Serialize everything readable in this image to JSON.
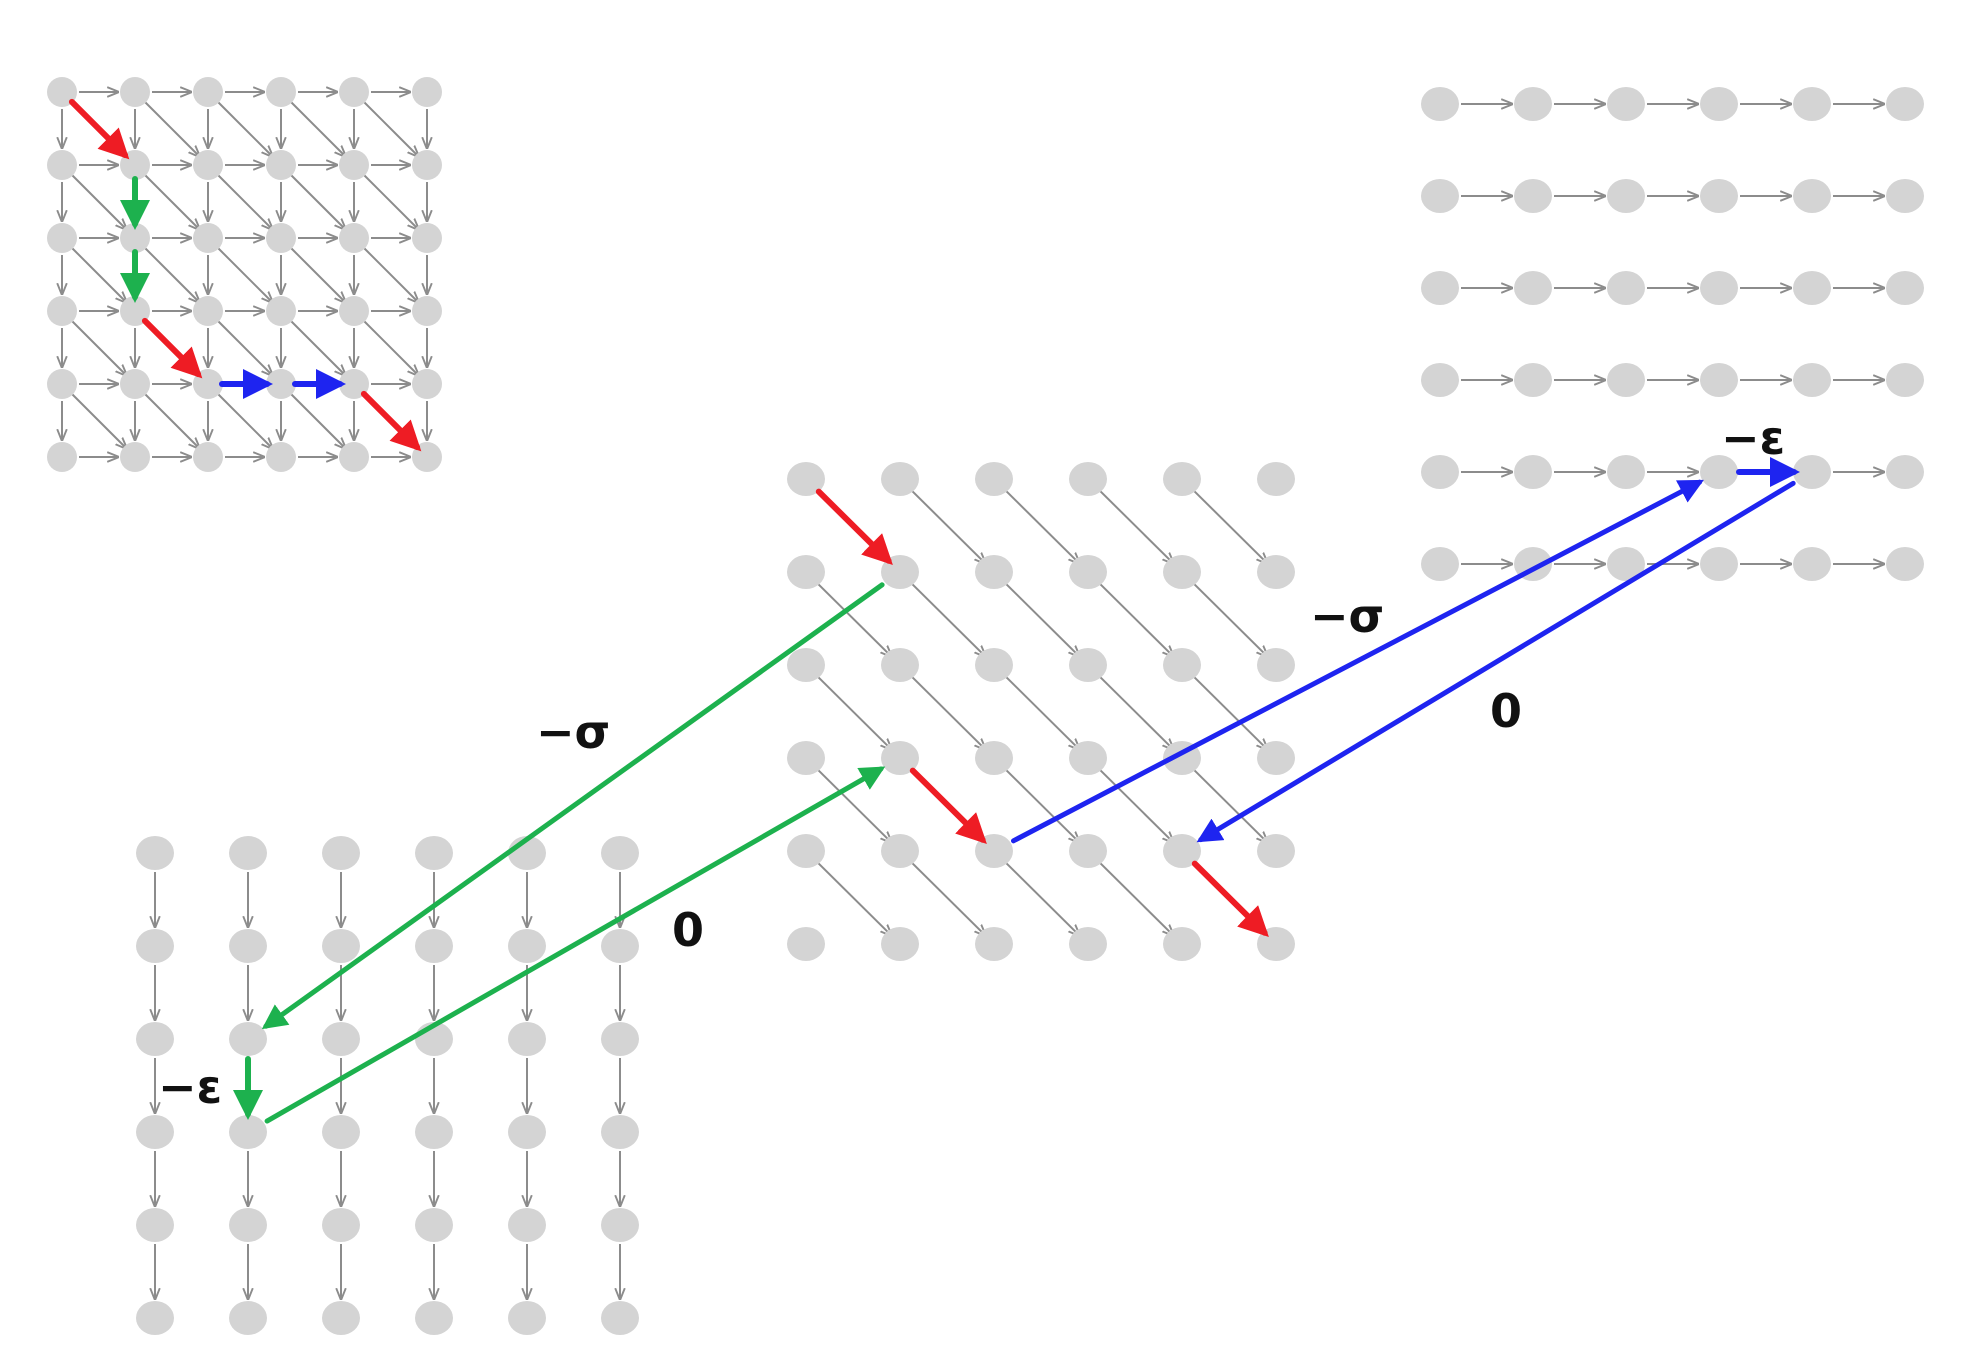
{
  "diagram": {
    "colors": {
      "node": "#d4d4d4",
      "edge": "#8c8c8c",
      "match": "#ee1c24",
      "insertion": "#1db14e",
      "deletion": "#1e24f0",
      "label": "#111111"
    },
    "overview_graph": {
      "grid_size": 6,
      "edge_types": [
        "horizontal",
        "vertical",
        "diagonal"
      ],
      "highlighted_path": [
        {
          "from": [
            0,
            0
          ],
          "to": [
            1,
            1
          ],
          "kind": "match"
        },
        {
          "from": [
            1,
            1
          ],
          "to": [
            2,
            1
          ],
          "kind": "insertion"
        },
        {
          "from": [
            2,
            1
          ],
          "to": [
            3,
            1
          ],
          "kind": "insertion"
        },
        {
          "from": [
            3,
            1
          ],
          "to": [
            4,
            2
          ],
          "kind": "match"
        },
        {
          "from": [
            4,
            2
          ],
          "to": [
            4,
            3
          ],
          "kind": "deletion"
        },
        {
          "from": [
            4,
            3
          ],
          "to": [
            4,
            4
          ],
          "kind": "deletion"
        },
        {
          "from": [
            4,
            4
          ],
          "to": [
            5,
            5
          ],
          "kind": "match"
        }
      ]
    },
    "layers": {
      "match_layer": {
        "grid_size": 6,
        "edge_type": "diagonal"
      },
      "insertion_layer": {
        "grid_size": 6,
        "edge_type": "vertical"
      },
      "deletion_layer": {
        "grid_size": 6,
        "edge_type": "horizontal"
      }
    },
    "labels": {
      "insertion_open": "−σ",
      "insertion_close": "0",
      "insertion_extend": "−ε",
      "deletion_open": "−σ",
      "deletion_close": "0",
      "deletion_extend": "−ε"
    }
  }
}
